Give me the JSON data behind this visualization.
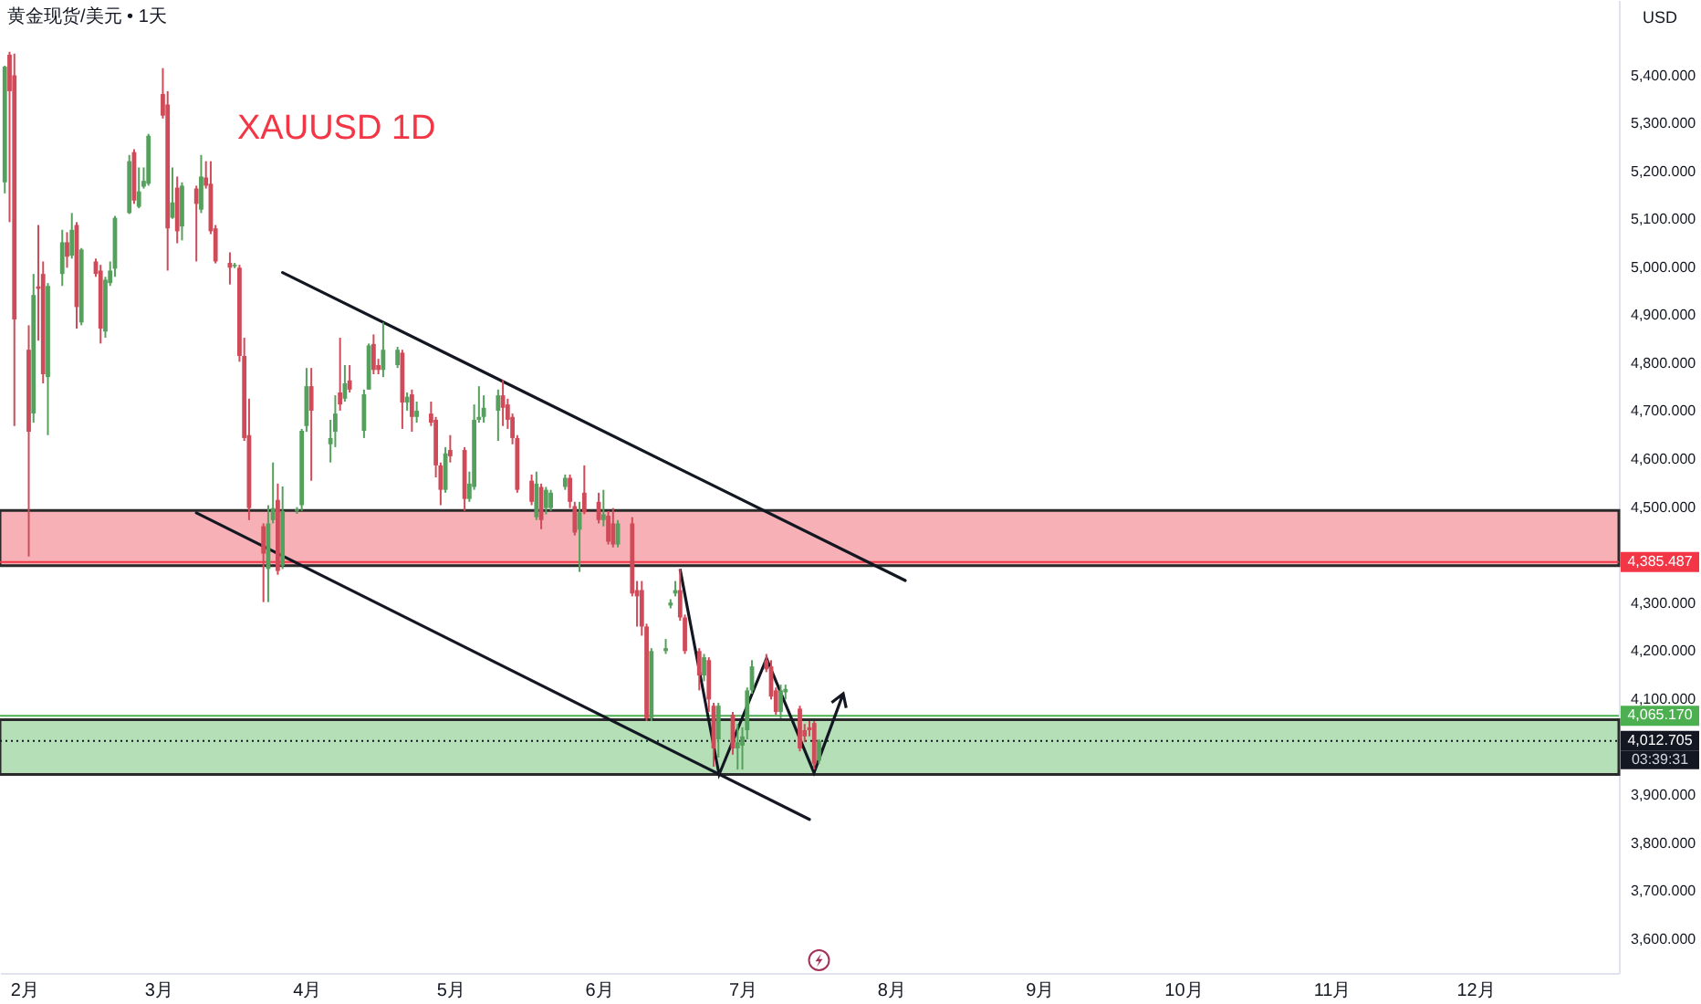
{
  "chart_data": {
    "type": "candlestick",
    "title": "XAUUSD 1D",
    "subtitle": "黄金现货/美元 • 1天",
    "ylabel": "USD",
    "x": [
      "--01-28",
      "--01-29",
      "--01-30",
      "--02-02",
      "--02-03",
      "--02-04",
      "--02-05",
      "--02-06",
      "--02-09",
      "--02-10",
      "--02-11",
      "--02-12",
      "--02-13",
      "--02-16",
      "--02-17",
      "--02-18",
      "--02-19",
      "--02-20",
      "--02-23",
      "--02-24",
      "--02-25",
      "--02-26",
      "--02-27",
      "--03-02",
      "--03-03",
      "--03-04",
      "--03-05",
      "--03-06",
      "--03-09",
      "--03-10",
      "--03-11",
      "--03-12",
      "--03-13",
      "--03-16",
      "--03-17",
      "--03-18",
      "--03-19",
      "--03-20",
      "--03-23",
      "--03-24",
      "--03-25",
      "--03-26",
      "--03-27",
      "--03-30",
      "--03-31",
      "--04-01",
      "--04-02",
      "--04-06",
      "--04-07",
      "--04-08",
      "--04-09",
      "--04-10",
      "--04-13",
      "--04-14",
      "--04-15",
      "--04-16",
      "--04-17",
      "--04-20",
      "--04-21",
      "--04-22",
      "--04-23",
      "--04-24",
      "--04-27",
      "--04-28",
      "--04-29",
      "--04-30",
      "--05-01",
      "--05-04",
      "--05-05",
      "--05-06",
      "--05-07",
      "--05-08",
      "--05-11",
      "--05-12",
      "--05-13",
      "--05-14",
      "--05-15",
      "--05-18",
      "--05-19",
      "--05-20",
      "--05-21",
      "--05-22",
      "--05-25",
      "--05-26",
      "--05-27",
      "--05-28",
      "--05-29",
      "--06-01",
      "--06-02",
      "--06-03",
      "--06-04",
      "--06-05",
      "--06-08",
      "--06-09",
      "--06-10",
      "--06-11",
      "--06-12",
      "--06-15",
      "--06-16",
      "--06-17",
      "--06-18",
      "--06-19",
      "--06-22",
      "--06-23",
      "--06-24",
      "--06-25",
      "--06-26",
      "--06-29",
      "--06-30",
      "--07-01",
      "--07-02",
      "--07-03",
      "--07-06",
      "--07-07",
      "--07-08",
      "--07-09",
      "--07-10",
      "--07-13",
      "--07-14",
      "--07-15",
      "--07-16",
      "--07-17"
    ],
    "ohlc": [
      [
        5177,
        5420,
        5154,
        5418
      ],
      [
        5443,
        5449,
        5094,
        5367
      ],
      [
        5400,
        5445,
        4669,
        4891
      ],
      [
        4828,
        4879,
        4397,
        4657
      ],
      [
        4695,
        4986,
        4676,
        4942
      ],
      [
        4960,
        5088,
        4847,
        4955
      ],
      [
        4986,
        5012,
        4758,
        4777
      ],
      [
        4771,
        4967,
        4650,
        4961
      ],
      [
        4986,
        5078,
        4961,
        5052
      ],
      [
        5052,
        5073,
        4999,
        5022
      ],
      [
        5024,
        5113,
        5018,
        5078
      ],
      [
        5088,
        5094,
        4872,
        4917
      ],
      [
        4885,
        5040,
        4879,
        5037
      ],
      [
        5012,
        5018,
        4980,
        4986
      ],
      [
        4993,
        5005,
        4841,
        4872
      ],
      [
        4866,
        4980,
        4853,
        4974
      ],
      [
        4967,
        5012,
        4961,
        4993
      ],
      [
        4997,
        5107,
        4980,
        5103
      ],
      [
        5113,
        5234,
        5111,
        5221
      ],
      [
        5240,
        5246,
        5132,
        5139
      ],
      [
        5126,
        5208,
        5123,
        5158
      ],
      [
        5168,
        5208,
        5164,
        5180
      ],
      [
        5174,
        5278,
        5170,
        5274
      ],
      [
        5361,
        5415,
        5310,
        5316
      ],
      [
        5339,
        5367,
        4993,
        5081
      ],
      [
        5103,
        5208,
        5101,
        5135
      ],
      [
        5166,
        5189,
        5050,
        5075
      ],
      [
        5085,
        5177,
        5056,
        5170
      ],
      [
        5164,
        5170,
        5012,
        5132
      ],
      [
        5120,
        5234,
        5113,
        5189
      ],
      [
        5187,
        5221,
        5164,
        5170
      ],
      [
        5174,
        5221,
        5069,
        5075
      ],
      [
        5081,
        5088,
        5008,
        5012
      ],
      [
        5009,
        5031,
        4964,
        4999
      ],
      [
        5002,
        5009,
        4998,
        5005
      ],
      [
        4999,
        5005,
        4803,
        4815
      ],
      [
        4815,
        4853,
        4638,
        4644
      ],
      [
        4650,
        4726,
        4473,
        4498
      ],
      [
        4460,
        4466,
        4302,
        4403
      ],
      [
        4371,
        4504,
        4302,
        4466
      ],
      [
        4473,
        4593,
        4466,
        4498
      ],
      [
        4515,
        4549,
        4359,
        4367
      ],
      [
        4378,
        4543,
        4371,
        4492
      ],
      [
        4492,
        4500,
        4486,
        4495
      ],
      [
        4504,
        4663,
        4492,
        4659
      ],
      [
        4669,
        4790,
        4657,
        4752
      ],
      [
        4752,
        4790,
        4555,
        4701
      ],
      [
        4631,
        4682,
        4593,
        4644
      ],
      [
        4657,
        4733,
        4625,
        4695
      ],
      [
        4739,
        4853,
        4701,
        4714
      ],
      [
        4726,
        4796,
        4720,
        4758
      ],
      [
        4764,
        4796,
        4739,
        4745
      ],
      [
        4659,
        4745,
        4644,
        4735
      ],
      [
        4745,
        4841,
        4745,
        4837
      ],
      [
        4840,
        4860,
        4777,
        4786
      ],
      [
        4796,
        4809,
        4777,
        4786
      ],
      [
        4786,
        4885,
        4771,
        4828
      ],
      [
        4796,
        4834,
        4790,
        4828
      ],
      [
        4822,
        4828,
        4663,
        4718
      ],
      [
        4718,
        4739,
        4701,
        4730
      ],
      [
        4735,
        4745,
        4657,
        4688
      ],
      [
        4688,
        4720,
        4676,
        4701
      ],
      [
        4695,
        4720,
        4669,
        4676
      ],
      [
        4682,
        4688,
        4562,
        4587
      ],
      [
        4587,
        4593,
        4504,
        4536
      ],
      [
        4536,
        4625,
        4530,
        4612
      ],
      [
        4619,
        4650,
        4593,
        4606
      ],
      [
        4619,
        4625,
        4492,
        4517
      ],
      [
        4517,
        4574,
        4511,
        4549
      ],
      [
        4542,
        4714,
        4536,
        4682
      ],
      [
        4682,
        4752,
        4676,
        4688
      ],
      [
        4688,
        4733,
        4676,
        4707
      ],
      [
        4701,
        4745,
        4638,
        4733
      ],
      [
        4733,
        4765,
        4669,
        4707
      ],
      [
        4714,
        4726,
        4663,
        4682
      ],
      [
        4688,
        4695,
        4631,
        4644
      ],
      [
        4644,
        4650,
        4530,
        4536
      ],
      [
        4555,
        4568,
        4504,
        4511
      ],
      [
        4479,
        4574,
        4473,
        4549
      ],
      [
        4542,
        4549,
        4454,
        4473
      ],
      [
        4498,
        4542,
        4485,
        4536
      ],
      [
        4498,
        4536,
        4492,
        4530
      ],
      [
        4542,
        4568,
        4536,
        4561
      ],
      [
        4561,
        4568,
        4498,
        4511
      ],
      [
        4502,
        4511,
        4441,
        4447
      ],
      [
        4453,
        4511,
        4365,
        4489
      ],
      [
        4530,
        4587,
        4485,
        4489
      ],
      [
        4511,
        4530,
        4466,
        4473
      ],
      [
        4473,
        4536,
        4460,
        4485
      ],
      [
        4482,
        4492,
        4422,
        4428
      ],
      [
        4466,
        4498,
        4416,
        4422
      ],
      [
        4422,
        4473,
        4416,
        4466
      ],
      [
        4466,
        4479,
        4314,
        4320
      ],
      [
        4327,
        4346,
        4251,
        4314
      ],
      [
        4327,
        4346,
        4232,
        4251
      ],
      [
        4251,
        4257,
        4054,
        4060
      ],
      [
        4060,
        4206,
        4054,
        4200
      ],
      [
        4200,
        4225,
        4194,
        4206
      ],
      [
        4295,
        4308,
        4289,
        4301
      ],
      [
        4320,
        4346,
        4314,
        4327
      ],
      [
        4327,
        4371,
        4263,
        4270
      ],
      [
        4270,
        4276,
        4194,
        4200
      ],
      [
        4200,
        4206,
        4118,
        4149
      ],
      [
        4149,
        4194,
        4137,
        4187
      ],
      [
        4181,
        4187,
        4073,
        4099
      ],
      [
        4086,
        4092,
        3959,
        3997
      ],
      [
        4016,
        4092,
        3978,
        4086
      ],
      [
        4067,
        4073,
        3984,
        3997
      ],
      [
        3997,
        4048,
        3953,
        4010
      ],
      [
        4003,
        4041,
        3953,
        4022
      ],
      [
        4035,
        4124,
        4016,
        4118
      ],
      [
        4118,
        4181,
        4111,
        4168
      ],
      [
        4181,
        4194,
        4156,
        4162
      ],
      [
        4168,
        4181,
        4099,
        4105
      ],
      [
        4118,
        4124,
        4067,
        4073
      ],
      [
        4073,
        4130,
        4060,
        4118
      ],
      [
        4114,
        4130,
        4099,
        4121
      ],
      [
        4080,
        4086,
        3991,
        3997
      ],
      [
        4035,
        4048,
        4010,
        4022
      ],
      [
        4041,
        4054,
        4022,
        4035
      ],
      [
        4050,
        4054,
        3953,
        3965
      ],
      [
        3972,
        4016,
        3965,
        4012.7
      ]
    ],
    "colors": [
      "#55a05c",
      "#cf4b59",
      "#cf4b59",
      "#cf4b59",
      "#55a05c",
      "#cf4b59",
      "#cf4b59",
      "#55a05c",
      "#55a05c",
      "#cf4b59",
      "#55a05c",
      "#cf4b59",
      "#55a05c",
      "#cf4b59",
      "#cf4b59",
      "#55a05c",
      "#55a05c",
      "#55a05c",
      "#55a05c",
      "#cf4b59",
      "#55a05c",
      "#55a05c",
      "#55a05c",
      "#cf4b59",
      "#cf4b59",
      "#55a05c",
      "#cf4b59",
      "#55a05c",
      "#cf4b59",
      "#55a05c",
      "#cf4b59",
      "#cf4b59",
      "#cf4b59",
      "#cf4b59",
      "#55a05c",
      "#cf4b59",
      "#cf4b59",
      "#cf4b59",
      "#cf4b59",
      "#55a05c",
      "#55a05c",
      "#cf4b59",
      "#55a05c",
      "#55a05c",
      "#55a05c",
      "#55a05c",
      "#cf4b59",
      "#55a05c",
      "#55a05c",
      "#cf4b59",
      "#55a05c",
      "#cf4b59",
      "#55a05c",
      "#55a05c",
      "#cf4b59",
      "#cf4b59",
      "#55a05c",
      "#55a05c",
      "#cf4b59",
      "#55a05c",
      "#cf4b59",
      "#55a05c",
      "#cf4b59",
      "#cf4b59",
      "#cf4b59",
      "#55a05c",
      "#cf4b59",
      "#cf4b59",
      "#55a05c",
      "#55a05c",
      "#55a05c",
      "#55a05c",
      "#55a05c",
      "#cf4b59",
      "#cf4b59",
      "#cf4b59",
      "#cf4b59",
      "#cf4b59",
      "#55a05c",
      "#cf4b59",
      "#55a05c",
      "#55a05c",
      "#55a05c",
      "#cf4b59",
      "#cf4b59",
      "#55a05c",
      "#cf4b59",
      "#cf4b59",
      "#55a05c",
      "#cf4b59",
      "#cf4b59",
      "#55a05c",
      "#cf4b59",
      "#cf4b59",
      "#cf4b59",
      "#cf4b59",
      "#55a05c",
      "#55a05c",
      "#55a05c",
      "#55a05c",
      "#cf4b59",
      "#cf4b59",
      "#cf4b59",
      "#55a05c",
      "#cf4b59",
      "#cf4b59",
      "#55a05c",
      "#cf4b59",
      "#55a05c",
      "#55a05c",
      "#55a05c",
      "#55a05c",
      "#cf4b59",
      "#cf4b59",
      "#cf4b59",
      "#55a05c",
      "#55a05c",
      "#cf4b59",
      "#cf4b59",
      "#cf4b59",
      "#cf4b59",
      "#55a05c"
    ],
    "series": [
      {
        "type": "line",
        "color": "#131722",
        "x": [
          "--03-27",
          "--08-04"
        ],
        "values": [
          4989,
          4347
        ]
      },
      {
        "type": "line",
        "color": "#131722",
        "x": [
          "--03-09",
          "--07-15"
        ],
        "values": [
          4488,
          3849
        ]
      }
    ],
    "xlim": [
      "--01-27",
      "--12-31"
    ],
    "xticks": [
      {
        "value": "--02-01",
        "label": "2月"
      },
      {
        "value": "--03-01",
        "label": "3月"
      },
      {
        "value": "--04-01",
        "label": "4月"
      },
      {
        "value": "--05-01",
        "label": "5月"
      },
      {
        "value": "--06-01",
        "label": "6月"
      },
      {
        "value": "--07-01",
        "label": "7月"
      },
      {
        "value": "--08-01",
        "label": "8月"
      },
      {
        "value": "--09-01",
        "label": "9月"
      },
      {
        "value": "--10-01",
        "label": "10月"
      },
      {
        "value": "--11-01",
        "label": "11月"
      },
      {
        "value": "--12-01",
        "label": "12月"
      }
    ],
    "ylim": [
      3529,
      5557
    ],
    "yticks": [
      {
        "value": 3600,
        "label": "3,600.000"
      },
      {
        "value": 3700,
        "label": "3,700.000"
      },
      {
        "value": 3800,
        "label": "3,800.000"
      },
      {
        "value": 3900,
        "label": "3,900.000"
      },
      {
        "value": 4100,
        "label": "4,100.000"
      },
      {
        "value": 4200,
        "label": "4,200.000"
      },
      {
        "value": 4300,
        "label": "4,300.000"
      },
      {
        "value": 4500,
        "label": "4,500.000"
      },
      {
        "value": 4600,
        "label": "4,600.000"
      },
      {
        "value": 4700,
        "label": "4,700.000"
      },
      {
        "value": 4800,
        "label": "4,800.000"
      },
      {
        "value": 4900,
        "label": "4,900.000"
      },
      {
        "value": 5000,
        "label": "5,000.000"
      },
      {
        "value": 5100,
        "label": "5,100.000"
      },
      {
        "value": 5200,
        "label": "5,200.000"
      },
      {
        "value": 5300,
        "label": "5,300.000"
      },
      {
        "value": 5400,
        "label": "5,400.000"
      }
    ],
    "ref_lines": [
      {
        "axis": "y",
        "value": 4385.487,
        "label": "4,385.487",
        "color": "#f23645"
      },
      {
        "axis": "y",
        "value": 4065.17,
        "label": "4,065.170",
        "color": "#4caf50"
      },
      {
        "axis": "y",
        "value": 4012.705,
        "label": "4,012.705",
        "color": "#131722",
        "line_style": "dotted"
      }
    ],
    "bands": [
      {
        "axis": "y",
        "from": 4378,
        "to": 4493,
        "color": "#f7b0b6"
      },
      {
        "axis": "y",
        "from": 3943,
        "to": 4057,
        "color": "#b4dfb7"
      }
    ],
    "annotations": [
      "03:39:31"
    ]
  }
}
